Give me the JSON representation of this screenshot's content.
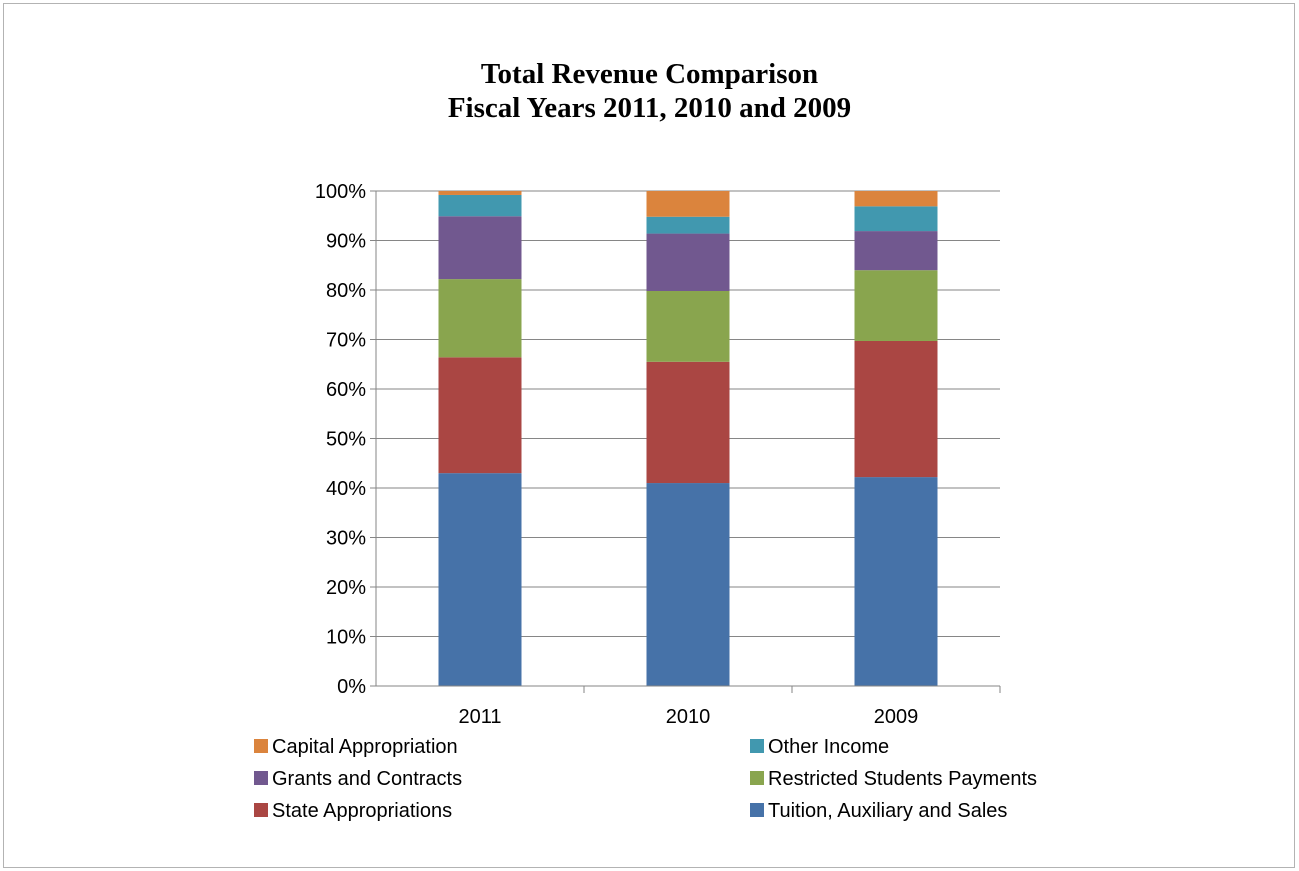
{
  "chart_data": {
    "type": "bar",
    "stacked": true,
    "percent": true,
    "title": "Total Revenue Comparison",
    "subtitle": "Fiscal Years 2011, 2010 and 2009",
    "categories": [
      "2011",
      "2010",
      "2009"
    ],
    "ylim": [
      0,
      100
    ],
    "yticks": [
      "0%",
      "10%",
      "20%",
      "30%",
      "40%",
      "50%",
      "60%",
      "70%",
      "80%",
      "90%",
      "100%"
    ],
    "grid": true,
    "legend_position": "bottom",
    "series": [
      {
        "name": "Tuition, Auxiliary and Sales",
        "color": "#4672A8",
        "values": [
          43.0,
          41.0,
          42.2
        ]
      },
      {
        "name": "State Appropriations",
        "color": "#AA4643",
        "values": [
          23.4,
          24.5,
          27.5
        ]
      },
      {
        "name": "Restricted Students Payments",
        "color": "#89A54E",
        "values": [
          15.8,
          14.3,
          14.3
        ]
      },
      {
        "name": "Grants and Contracts",
        "color": "#71588F",
        "values": [
          12.7,
          11.6,
          7.9
        ]
      },
      {
        "name": "Other Income",
        "color": "#4198AF",
        "values": [
          4.3,
          3.4,
          5.0
        ]
      },
      {
        "name": "Capital Appropriation",
        "color": "#DB843D",
        "values": [
          0.8,
          5.2,
          3.1
        ]
      }
    ],
    "legend_order": [
      [
        "Capital Appropriation",
        "Other Income"
      ],
      [
        "Grants and Contracts",
        "Restricted Students Payments"
      ],
      [
        "State Appropriations",
        "Tuition, Auxiliary and Sales"
      ]
    ]
  }
}
